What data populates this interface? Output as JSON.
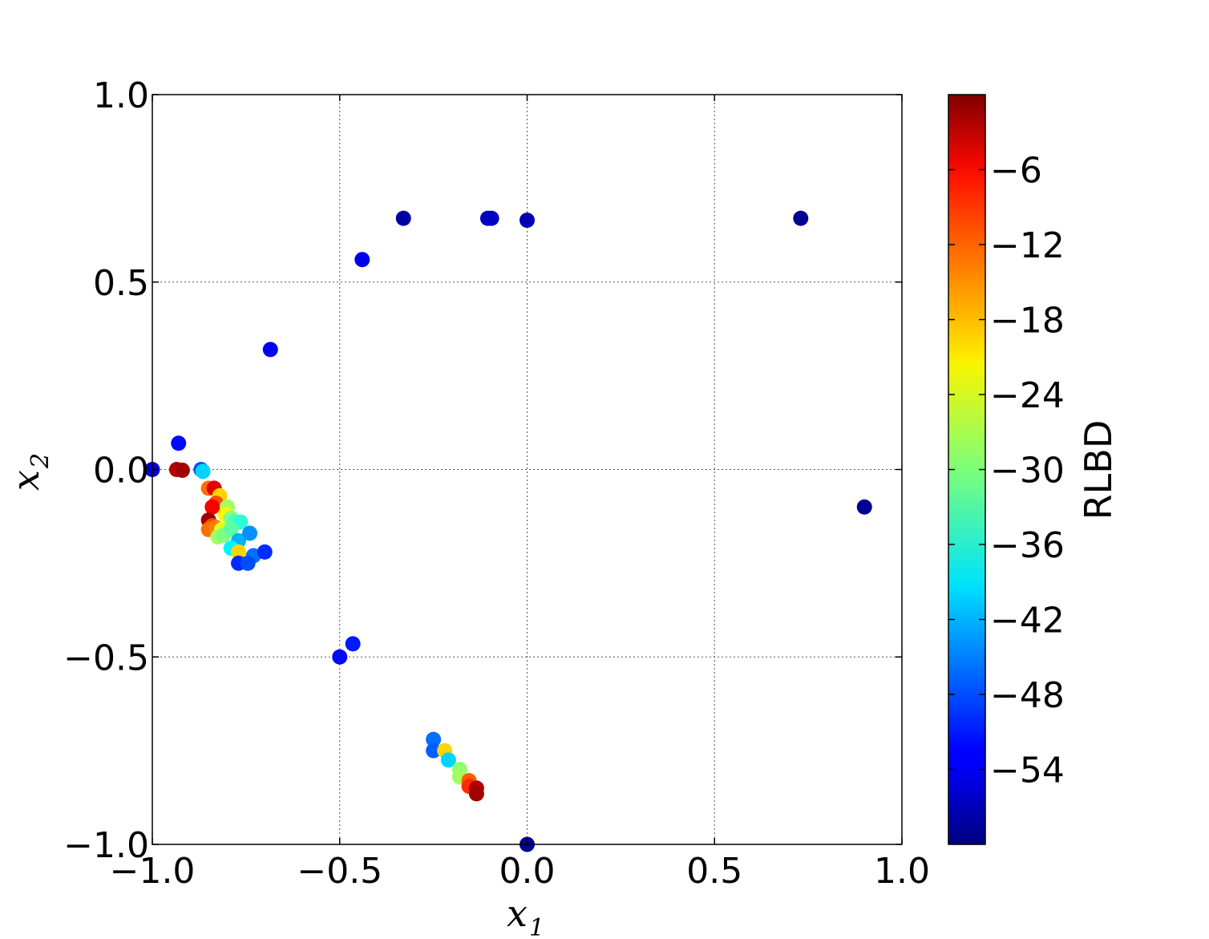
{
  "chart_data": {
    "type": "scatter",
    "xlabel": "x",
    "xlabel_sub": "1",
    "ylabel": "x",
    "ylabel_sub": "2",
    "xlim": [
      -1.0,
      1.0
    ],
    "ylim": [
      -1.0,
      1.0
    ],
    "xticks": [
      -1.0,
      -0.5,
      0.0,
      0.5,
      1.0
    ],
    "xtick_labels": [
      "−1.0",
      "−0.5",
      "0.0",
      "0.5",
      "1.0"
    ],
    "yticks": [
      -1.0,
      -0.5,
      0.0,
      0.5,
      1.0
    ],
    "ytick_labels": [
      "−1.0",
      "−0.5",
      "0.0",
      "0.5",
      "1.0"
    ],
    "grid": true,
    "colormap": "jet",
    "colorbar": {
      "label": "RLBD",
      "range": [
        -60,
        0
      ],
      "ticks": [
        -6,
        -12,
        -18,
        -24,
        -30,
        -36,
        -42,
        -48,
        -54
      ],
      "tick_labels": [
        "−6",
        "−12",
        "−18",
        "−24",
        "−30",
        "−36",
        "−42",
        "−48",
        "−54"
      ]
    },
    "points": [
      {
        "x": -1.0,
        "y": 0.0,
        "c": -55
      },
      {
        "x": -0.93,
        "y": 0.07,
        "c": -52
      },
      {
        "x": -0.935,
        "y": 0.0,
        "c": -3
      },
      {
        "x": -0.92,
        "y": -0.002,
        "c": -2
      },
      {
        "x": -0.87,
        "y": 0.0,
        "c": -48
      },
      {
        "x": -0.865,
        "y": -0.005,
        "c": -40
      },
      {
        "x": -0.85,
        "y": -0.05,
        "c": -14
      },
      {
        "x": -0.835,
        "y": -0.05,
        "c": -6
      },
      {
        "x": -0.82,
        "y": -0.07,
        "c": -20
      },
      {
        "x": -0.83,
        "y": -0.09,
        "c": -12
      },
      {
        "x": -0.84,
        "y": -0.1,
        "c": -7
      },
      {
        "x": -0.8,
        "y": -0.1,
        "c": -28
      },
      {
        "x": -0.805,
        "y": -0.12,
        "c": -22
      },
      {
        "x": -0.79,
        "y": -0.13,
        "c": -30
      },
      {
        "x": -0.78,
        "y": -0.14,
        "c": -33
      },
      {
        "x": -0.765,
        "y": -0.14,
        "c": -35
      },
      {
        "x": -0.85,
        "y": -0.135,
        "c": -2
      },
      {
        "x": -0.84,
        "y": -0.15,
        "c": -12
      },
      {
        "x": -0.85,
        "y": -0.16,
        "c": -14
      },
      {
        "x": -0.83,
        "y": -0.155,
        "c": -15
      },
      {
        "x": -0.815,
        "y": -0.16,
        "c": -24
      },
      {
        "x": -0.825,
        "y": -0.18,
        "c": -28
      },
      {
        "x": -0.81,
        "y": -0.175,
        "c": -30
      },
      {
        "x": -0.79,
        "y": -0.16,
        "c": -32
      },
      {
        "x": -0.77,
        "y": -0.19,
        "c": -42
      },
      {
        "x": -0.74,
        "y": -0.17,
        "c": -44
      },
      {
        "x": -0.79,
        "y": -0.21,
        "c": -38
      },
      {
        "x": -0.77,
        "y": -0.22,
        "c": -20
      },
      {
        "x": -0.73,
        "y": -0.23,
        "c": -46
      },
      {
        "x": -0.7,
        "y": -0.22,
        "c": -50
      },
      {
        "x": -0.77,
        "y": -0.25,
        "c": -50
      },
      {
        "x": -0.745,
        "y": -0.25,
        "c": -48
      },
      {
        "x": -0.685,
        "y": 0.32,
        "c": -53
      },
      {
        "x": -0.44,
        "y": 0.56,
        "c": -54
      },
      {
        "x": -0.33,
        "y": 0.67,
        "c": -58
      },
      {
        "x": -0.105,
        "y": 0.67,
        "c": -56
      },
      {
        "x": -0.095,
        "y": 0.67,
        "c": -56
      },
      {
        "x": 0.0,
        "y": 0.665,
        "c": -57
      },
      {
        "x": 0.73,
        "y": 0.67,
        "c": -59
      },
      {
        "x": 0.9,
        "y": -0.1,
        "c": -59
      },
      {
        "x": -0.5,
        "y": -0.5,
        "c": -52
      },
      {
        "x": -0.465,
        "y": -0.465,
        "c": -51
      },
      {
        "x": -0.25,
        "y": -0.72,
        "c": -46
      },
      {
        "x": -0.25,
        "y": -0.75,
        "c": -47
      },
      {
        "x": -0.22,
        "y": -0.75,
        "c": -20
      },
      {
        "x": -0.21,
        "y": -0.775,
        "c": -40
      },
      {
        "x": -0.18,
        "y": -0.8,
        "c": -29
      },
      {
        "x": -0.18,
        "y": -0.82,
        "c": -28
      },
      {
        "x": -0.155,
        "y": -0.83,
        "c": -13
      },
      {
        "x": -0.155,
        "y": -0.845,
        "c": -10
      },
      {
        "x": -0.135,
        "y": -0.85,
        "c": -3
      },
      {
        "x": -0.135,
        "y": -0.865,
        "c": -2
      },
      {
        "x": 0.0,
        "y": -1.0,
        "c": -59
      }
    ]
  }
}
